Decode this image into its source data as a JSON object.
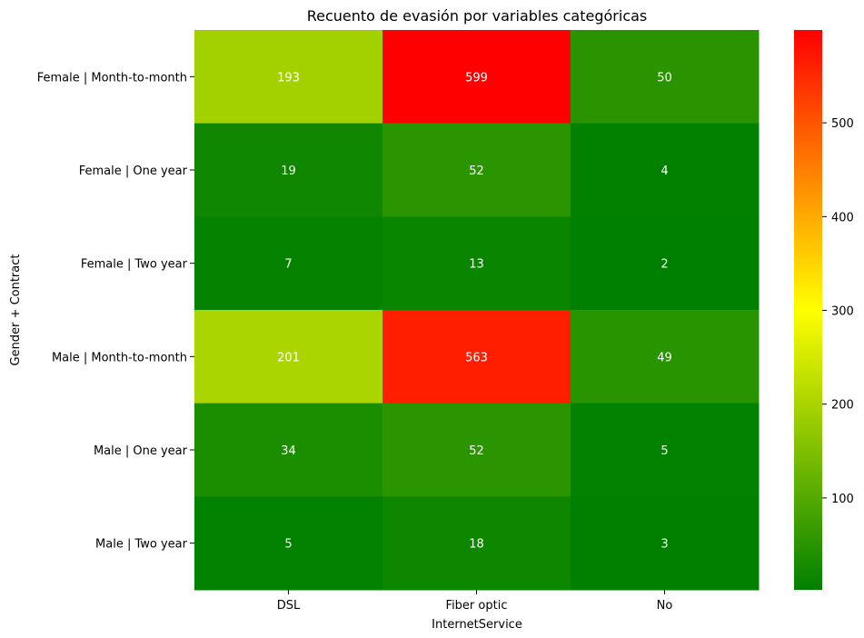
{
  "chart_data": {
    "type": "heatmap",
    "title": "Recuento de evasión por variables categóricas",
    "xlabel": "InternetService",
    "ylabel": "Gender + Contract",
    "x_categories": [
      "DSL",
      "Fiber optic",
      "No"
    ],
    "y_categories": [
      "Female | Month-to-month",
      "Female | One year",
      "Female | Two year",
      "Male | Month-to-month",
      "Male | One year",
      "Male | Two year"
    ],
    "values": [
      [
        193,
        599,
        50
      ],
      [
        19,
        52,
        4
      ],
      [
        7,
        13,
        2
      ],
      [
        201,
        563,
        49
      ],
      [
        34,
        52,
        5
      ],
      [
        5,
        18,
        3
      ]
    ],
    "vmin": 2,
    "vmax": 599,
    "colormap": [
      "#008000",
      "#ffff00",
      "#ff0000"
    ],
    "colorbar_ticks": [
      100,
      200,
      300,
      400,
      500
    ],
    "annotation_color": "#ffffff"
  }
}
